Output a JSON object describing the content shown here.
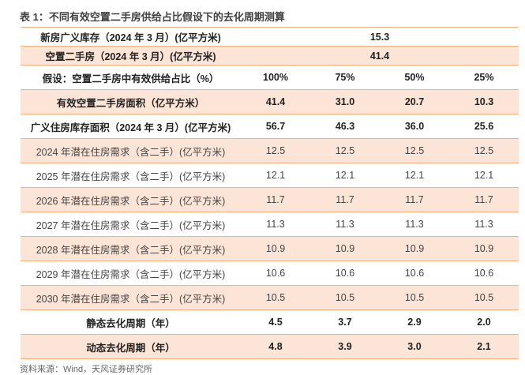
{
  "title": "表 1：不同有效空置二手房供给占比假设下的去化周期测算",
  "rows": [
    {
      "label": "新房广义库存（2024 年 3 月）(亿平方米)",
      "merged": "15.3"
    },
    {
      "label": "空置二手房（2024 年 3 月）(亿平方米)",
      "merged": "41.4"
    },
    {
      "label": "假设：空置二手房中有效供给占比（%）",
      "values": [
        "100%",
        "75%",
        "50%",
        "25%"
      ]
    },
    {
      "label": "有效空置二手房面积（亿平方米）",
      "values": [
        "41.4",
        "31.0",
        "20.7",
        "10.3"
      ]
    },
    {
      "label": "广义住房库存面积（2024 年 3 月）(亿平方米)",
      "values": [
        "56.7",
        "46.3",
        "36.0",
        "25.6"
      ]
    },
    {
      "label": "2024 年潜在住房需求（含二手）(亿平方米)",
      "values": [
        "12.5",
        "12.5",
        "12.5",
        "12.5"
      ]
    },
    {
      "label": "2025 年潜在住房需求（含二手）(亿平方米)",
      "values": [
        "12.1",
        "12.1",
        "12.1",
        "12.1"
      ]
    },
    {
      "label": "2026 年潜在住房需求（含二手）(亿平方米)",
      "values": [
        "11.7",
        "11.7",
        "11.7",
        "11.7"
      ]
    },
    {
      "label": "2027 年潜在住房需求（含二手）(亿平方米)",
      "values": [
        "11.3",
        "11.3",
        "11.3",
        "11.3"
      ]
    },
    {
      "label": "2028 年潜在住房需求（含二手）(亿平方米)",
      "values": [
        "10.9",
        "10.9",
        "10.9",
        "10.9"
      ]
    },
    {
      "label": "2029 年潜在住房需求（含二手）(亿平方米)",
      "values": [
        "10.6",
        "10.6",
        "10.6",
        "10.6"
      ]
    },
    {
      "label": "2030 年潜在住房需求（含二手）(亿平方米)",
      "values": [
        "10.5",
        "10.5",
        "10.5",
        "10.5"
      ]
    },
    {
      "label": "静态去化周期（年）",
      "values": [
        "4.5",
        "3.7",
        "2.9",
        "2.0"
      ]
    },
    {
      "label": "动态去化周期（年）",
      "values": [
        "4.8",
        "3.9",
        "3.0",
        "2.1"
      ]
    }
  ],
  "source": "资料来源：Wind，天风证券研究所",
  "colors": {
    "shade": "#fce4d6",
    "rule": "#f4b183"
  }
}
